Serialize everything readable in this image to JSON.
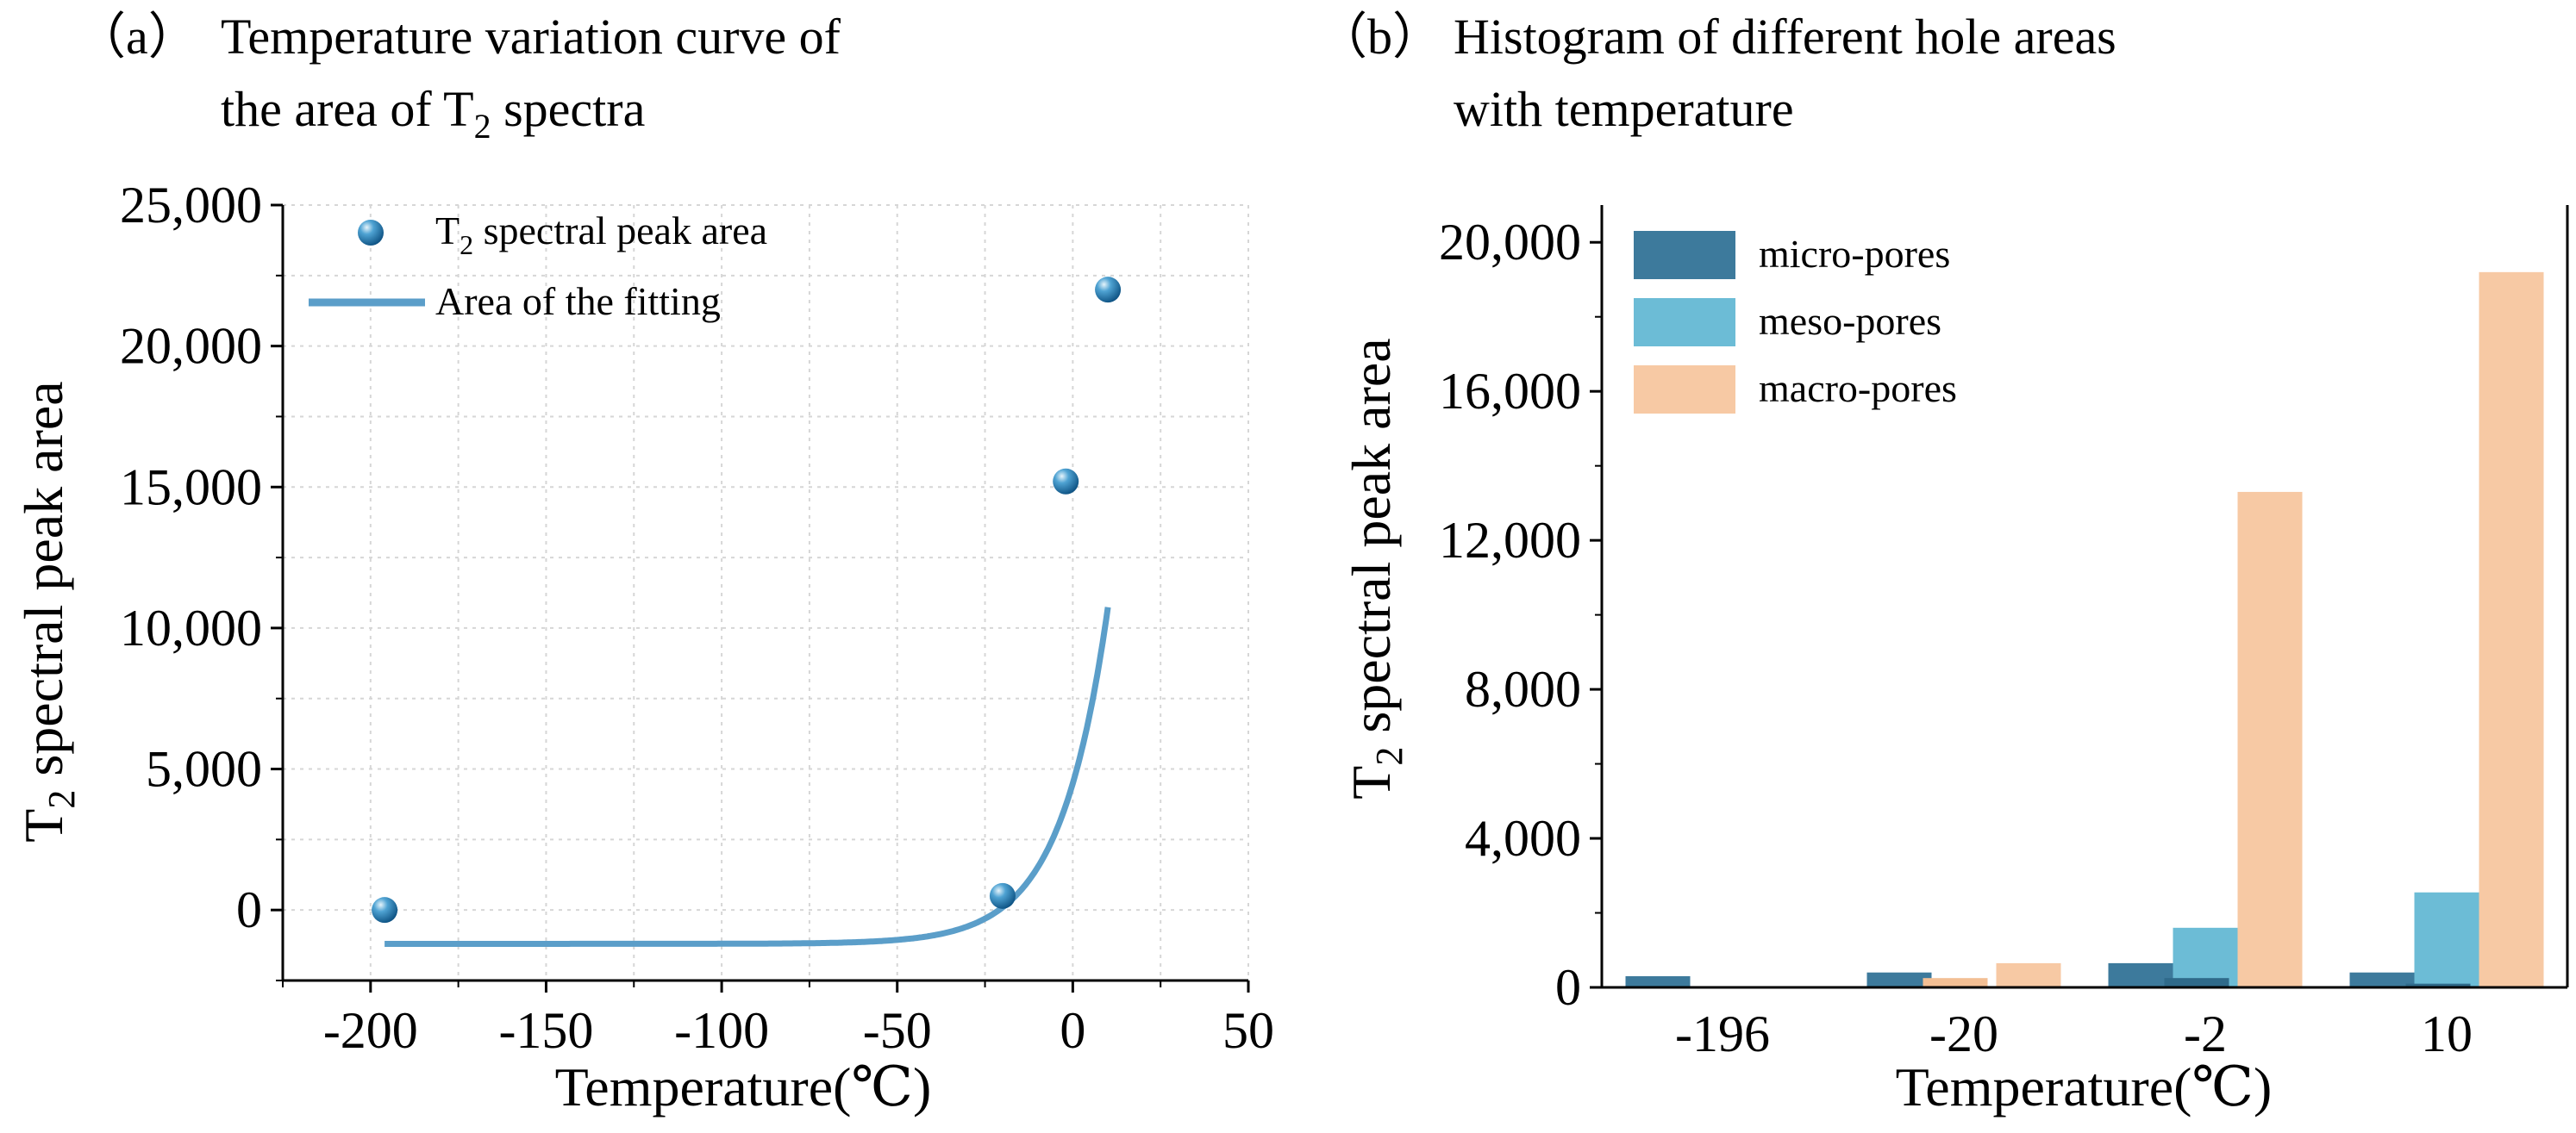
{
  "colors": {
    "fit_line": "#5b9ec9",
    "marker": "#1f78b4",
    "micro": "#3d7a9c",
    "meso": "#6cbcd6",
    "macro": "#f7c9a4",
    "grid": "#d6d6d6",
    "axis": "#000000"
  },
  "chart_data": [
    {
      "type": "scatter",
      "title_label": "（a）",
      "title_line1": "Temperature variation curve of",
      "title_line2": "the area of T",
      "title_line2_sub": "2",
      "title_line2_end": " spectra",
      "xlabel": "Temperature(℃)",
      "ylabel_main": "T",
      "ylabel_sub": "2",
      "ylabel_rest": "  spectral peak area",
      "xlim": [
        -225,
        50
      ],
      "ylim": [
        -2500,
        25000
      ],
      "xticks": [
        -200,
        -150,
        -100,
        -50,
        0,
        50
      ],
      "xtick_labels": [
        "-200",
        "-150",
        "-100",
        "-50",
        "0",
        "50"
      ],
      "yticks": [
        0,
        5000,
        10000,
        15000,
        20000,
        25000
      ],
      "ytick_labels": [
        "0",
        "5,000",
        "10,000",
        "15,000",
        "20,000",
        "25,000"
      ],
      "grid": true,
      "legend_position": "top-left",
      "legend": {
        "points_main": "T",
        "points_sub": "2",
        "points_rest": "  spectral peak area",
        "fit": "Area of the fitting"
      },
      "points": [
        {
          "x": -196,
          "y": 0
        },
        {
          "x": -20,
          "y": 500
        },
        {
          "x": -2,
          "y": 15200
        },
        {
          "x": 10,
          "y": 22000
        }
      ],
      "fit": {
        "model": "y = a + b*exp(c*x)",
        "a": -1200,
        "b": 5690,
        "c": 0.0741,
        "x_range": [
          -196,
          10
        ]
      }
    },
    {
      "type": "bar",
      "title_label": "（b）",
      "title_line1": "Histogram of different hole areas",
      "title_line2": "with temperature",
      "xlabel": "Temperature(℃)",
      "ylabel_main": "T",
      "ylabel_sub": "2",
      "ylabel_rest": " spectral peak area",
      "categories": [
        "-196",
        "-20",
        "-2",
        "10"
      ],
      "ylim": [
        0,
        21000
      ],
      "yticks": [
        0,
        4000,
        8000,
        12000,
        16000,
        20000
      ],
      "ytick_labels": [
        "0",
        "4,000",
        "8,000",
        "12,000",
        "16,000",
        "20,000"
      ],
      "legend_position": "top-left",
      "series": [
        {
          "name": "micro-pores",
          "values": [
            300,
            400,
            650,
            400
          ]
        },
        {
          "name": "meso-pores",
          "values": [
            0,
            0,
            1600,
            2550
          ]
        },
        {
          "name": "macro-pores",
          "values": [
            0,
            650,
            13300,
            19200
          ]
        }
      ],
      "overlay_series": [
        {
          "name": "micro-pores",
          "values": [
            0,
            200,
            250,
            100
          ]
        },
        {
          "name": "macro-pores",
          "values": [
            0,
            250,
            0,
            0
          ]
        }
      ]
    }
  ]
}
